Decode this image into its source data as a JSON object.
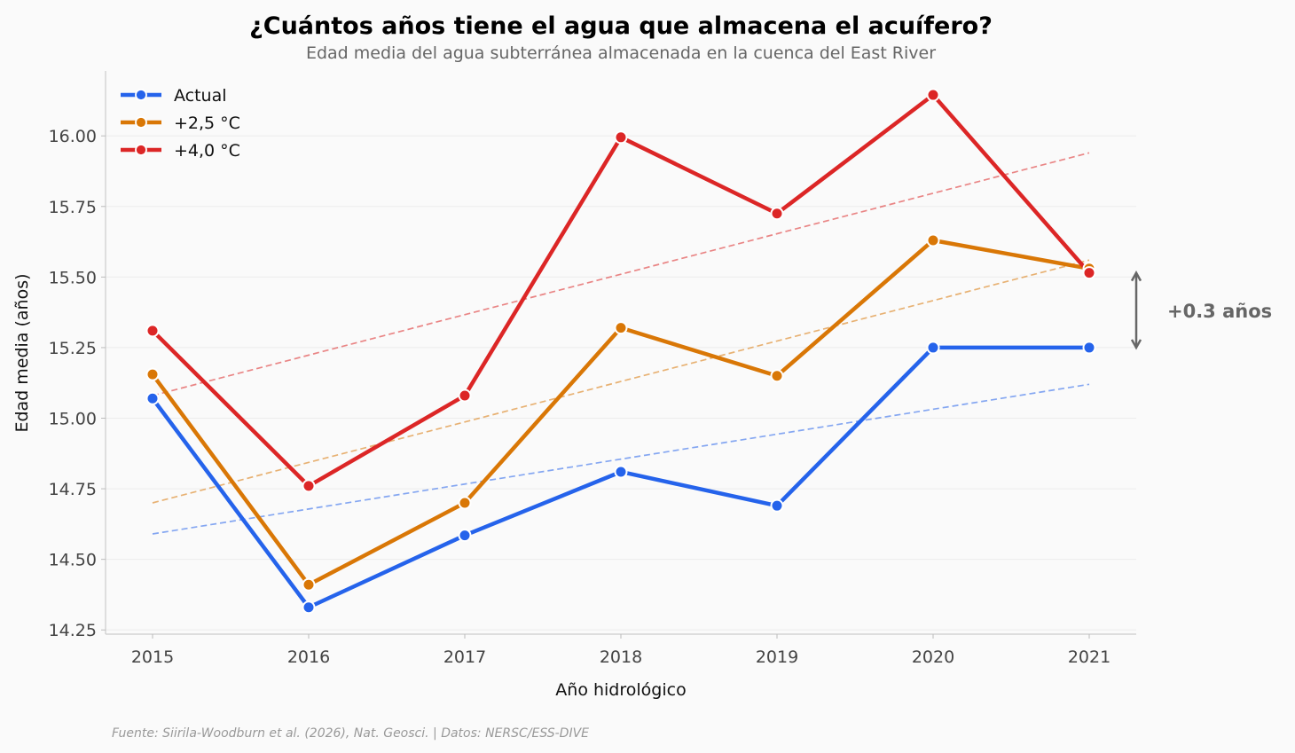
{
  "chart_data": {
    "type": "line",
    "title": "¿Cuántos años tiene el agua que almacena el acuífero?",
    "subtitle": "Edad media del agua subterránea almacenada en la cuenca del East River",
    "xlabel": "Año hidrológico",
    "ylabel": "Edad media (años)",
    "x": [
      2015,
      2016,
      2017,
      2018,
      2019,
      2020,
      2021
    ],
    "x_tick_labels": [
      "2015",
      "2016",
      "2017",
      "2018",
      "2019",
      "2020",
      "2021"
    ],
    "ylim": [
      14.235,
      16.23
    ],
    "y_ticks": [
      14.25,
      14.5,
      14.75,
      15.0,
      15.25,
      15.5,
      15.75,
      16.0
    ],
    "y_tick_labels": [
      "14.25",
      "14.50",
      "14.75",
      "15.00",
      "15.25",
      "15.50",
      "15.75",
      "16.00"
    ],
    "grid": "horizontal",
    "legend_position": "top-left",
    "series": [
      {
        "name": "Actual",
        "color": "#2563eb",
        "values": [
          15.07,
          14.33,
          14.585,
          14.81,
          14.69,
          15.25,
          15.25
        ],
        "trend": [
          14.59,
          15.12
        ]
      },
      {
        "name": "+2,5 °C",
        "color": "#d97706",
        "values": [
          15.155,
          14.41,
          14.7,
          15.32,
          15.15,
          15.63,
          15.53
        ],
        "trend": [
          14.7,
          15.56
        ]
      },
      {
        "name": "+4,0 °C",
        "color": "#dc2626",
        "values": [
          15.31,
          14.76,
          15.08,
          15.995,
          15.725,
          16.145,
          15.515
        ],
        "trend": [
          15.08,
          15.94
        ]
      }
    ],
    "annotation": {
      "text": "+0.3 años",
      "from": 15.25,
      "to": 15.515
    },
    "source": "Fuente: Siirila-Woodburn et al. (2026), Nat. Geosci. | Datos: NERSC/ESS-DIVE"
  }
}
